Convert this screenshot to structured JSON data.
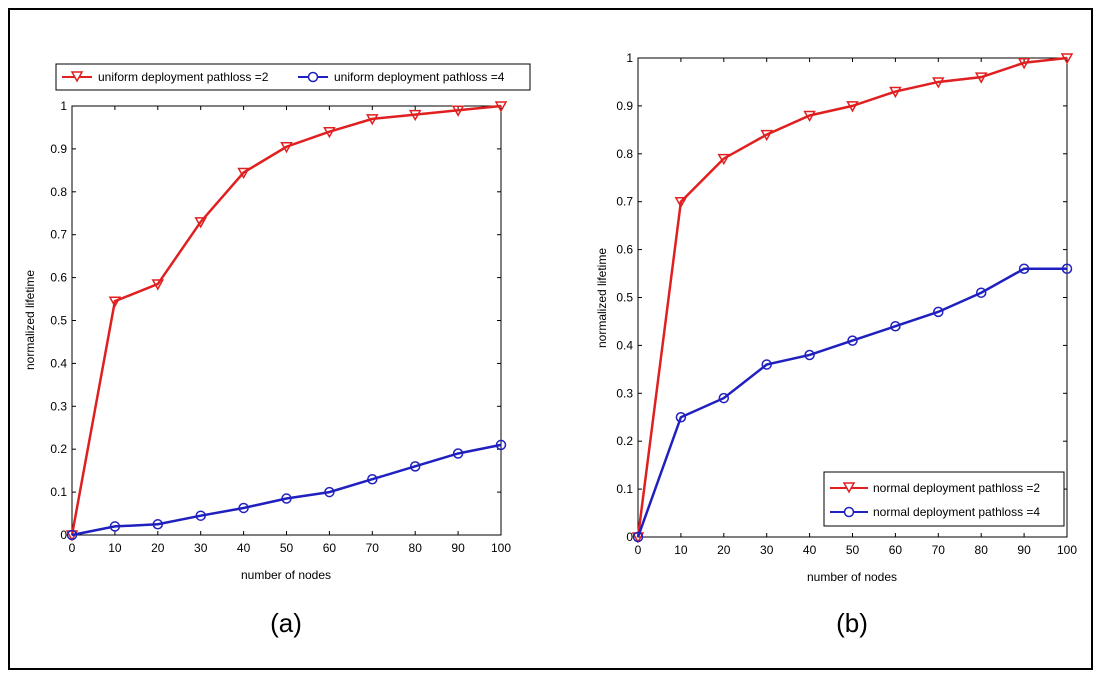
{
  "figure": {
    "captions": [
      "(a)",
      "(b)"
    ]
  },
  "chart_data": [
    {
      "type": "line",
      "caption": "(a)",
      "xlabel": "number of nodes",
      "ylabel": "normalized lifetime",
      "x": [
        0,
        10,
        20,
        30,
        40,
        50,
        60,
        70,
        80,
        90,
        100
      ],
      "xlim": [
        0,
        100
      ],
      "ylim": [
        0,
        1
      ],
      "xticks": [
        "0",
        "10",
        "20",
        "30",
        "40",
        "50",
        "60",
        "70",
        "80",
        "90",
        "100"
      ],
      "yticks": [
        "0",
        "0.1",
        "0.2",
        "0.3",
        "0.4",
        "0.5",
        "0.6",
        "0.7",
        "0.8",
        "0.9",
        "1"
      ],
      "grid": false,
      "legend_position": "top",
      "series": [
        {
          "name": "uniform deployment pathloss =2",
          "color": "#e02020",
          "marker": "triangle-down",
          "values": [
            0,
            0.545,
            0.585,
            0.73,
            0.845,
            0.905,
            0.94,
            0.97,
            0.98,
            0.99,
            1.0
          ]
        },
        {
          "name": "uniform deployment pathloss =4",
          "color": "#2020c0",
          "marker": "circle",
          "values": [
            0,
            0.02,
            0.025,
            0.045,
            0.063,
            0.085,
            0.1,
            0.13,
            0.16,
            0.19,
            0.21
          ]
        }
      ]
    },
    {
      "type": "line",
      "caption": "(b)",
      "xlabel": "number of nodes",
      "ylabel": "normalized lifetime",
      "x": [
        0,
        10,
        20,
        30,
        40,
        50,
        60,
        70,
        80,
        90,
        100
      ],
      "xlim": [
        0,
        100
      ],
      "ylim": [
        0,
        1
      ],
      "xticks": [
        "0",
        "10",
        "20",
        "30",
        "40",
        "50",
        "60",
        "70",
        "80",
        "90",
        "100"
      ],
      "yticks": [
        "0",
        "0.1",
        "0.2",
        "0.3",
        "0.4",
        "0.5",
        "0.6",
        "0.7",
        "0.8",
        "0.9",
        "1"
      ],
      "grid": false,
      "legend_position": "bottom-right",
      "series": [
        {
          "name": "normal deployment pathloss =2",
          "color": "#e02020",
          "marker": "triangle-down",
          "values": [
            0,
            0.7,
            0.79,
            0.84,
            0.88,
            0.9,
            0.93,
            0.95,
            0.96,
            0.99,
            1.0
          ]
        },
        {
          "name": "normal deployment pathloss =4",
          "color": "#2020c0",
          "marker": "circle",
          "values": [
            0,
            0.25,
            0.29,
            0.36,
            0.38,
            0.41,
            0.44,
            0.47,
            0.51,
            0.56,
            0.56
          ]
        }
      ]
    }
  ]
}
